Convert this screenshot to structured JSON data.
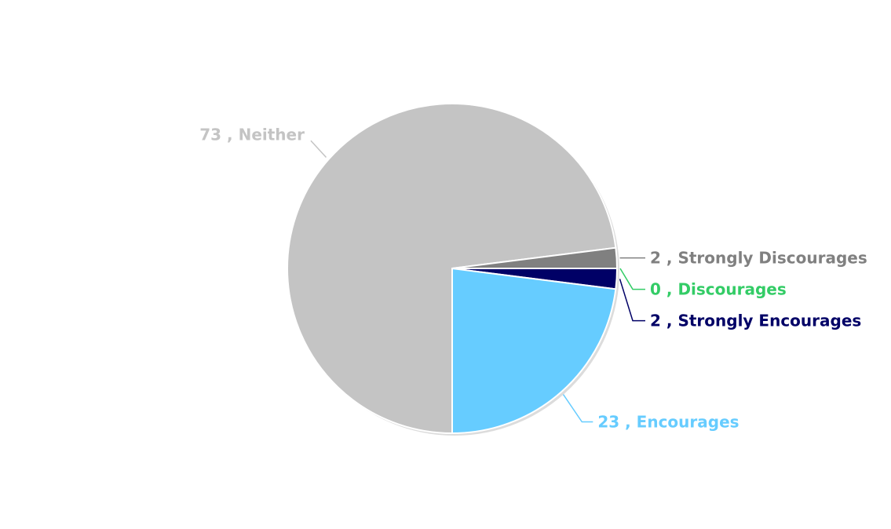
{
  "chart_data": {
    "type": "pie",
    "slices": [
      {
        "label": "Strongly Encourages",
        "value": 2,
        "color": "#000066"
      },
      {
        "label": "Encourages",
        "value": 23,
        "color": "#66ccff"
      },
      {
        "label": "Neither",
        "value": 73,
        "color": "#c4c4c4"
      },
      {
        "label": "Strongly Discourages",
        "value": 2,
        "color": "#808080"
      },
      {
        "label": "Discourages",
        "value": 0,
        "color": "#33cc66"
      }
    ],
    "label_format": "value , label"
  }
}
